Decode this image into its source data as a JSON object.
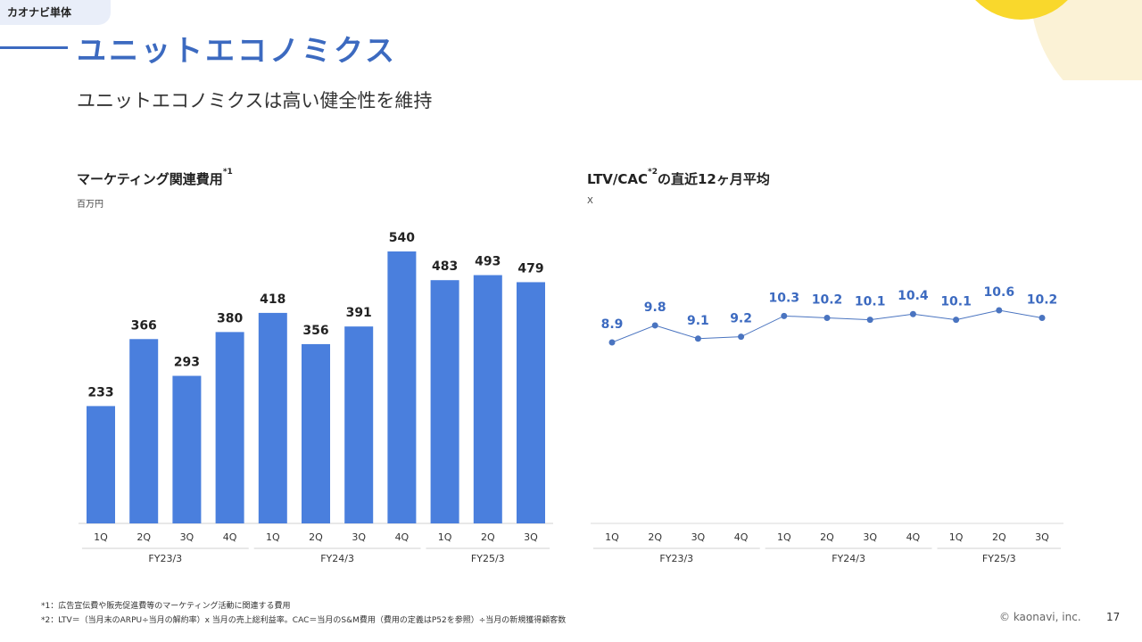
{
  "header": {
    "tag": "カオナビ単体",
    "title": "ユニットエコノミクス",
    "subtitle": "ユニットエコノミクスは高い健全性を維持"
  },
  "colors": {
    "accent": "#3c6ac0",
    "bar": "#4a7fdd",
    "line": "#4a74c0",
    "tag_bg": "#e9eef9",
    "deco_yellow": "#f9d82c",
    "deco_cream": "#fbf2d6"
  },
  "chart_data": [
    {
      "type": "bar",
      "title": "マーケティング関連費用",
      "title_note": "*1",
      "unit": "百万円",
      "categories": [
        "1Q",
        "2Q",
        "3Q",
        "4Q",
        "1Q",
        "2Q",
        "3Q",
        "4Q",
        "1Q",
        "2Q",
        "3Q"
      ],
      "groups": [
        {
          "label": "FY23/3",
          "count": 4
        },
        {
          "label": "FY24/3",
          "count": 4
        },
        {
          "label": "FY25/3",
          "count": 3
        }
      ],
      "values": [
        233,
        366,
        293,
        380,
        418,
        356,
        391,
        540,
        483,
        493,
        479
      ],
      "ylim": [
        0,
        540
      ],
      "grid": false,
      "data_labels": true
    },
    {
      "type": "line",
      "title": "LTV/CAC",
      "title_note": "*2",
      "title_suffix": "の直近12ヶ月平均",
      "unit": "X",
      "categories": [
        "1Q",
        "2Q",
        "3Q",
        "4Q",
        "1Q",
        "2Q",
        "3Q",
        "4Q",
        "1Q",
        "2Q",
        "3Q"
      ],
      "groups": [
        {
          "label": "FY23/3",
          "count": 4
        },
        {
          "label": "FY24/3",
          "count": 4
        },
        {
          "label": "FY25/3",
          "count": 3
        }
      ],
      "values": [
        8.9,
        9.8,
        9.1,
        9.2,
        10.3,
        10.2,
        10.1,
        10.4,
        10.1,
        10.6,
        10.2
      ],
      "grid": false,
      "data_labels": true
    }
  ],
  "footnotes": [
    "*1：広告宣伝費や販売促進費等のマーケティング活動に関連する費用",
    "*2：LTV＝（当月末のARPU÷当月の解約率）x 当月の売上総利益率。CAC＝当月のS&M費用（費用の定義はP52を参照）÷当月の新規獲得顧客数"
  ],
  "footer": {
    "copyright": "© kaonavi, inc.",
    "page": "17"
  }
}
